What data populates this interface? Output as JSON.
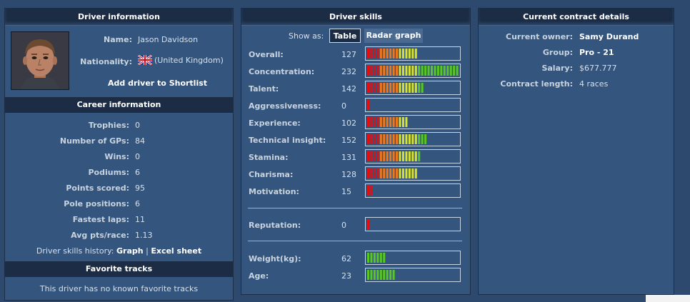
{
  "driver_info": {
    "title": "Driver information",
    "name_label": "Name:",
    "name": "Jason Davidson",
    "nationality_label": "Nationality:",
    "nationality": "(United Kingdom)",
    "flag_icon": "uk-flag-icon",
    "shortlist_link": "Add driver to Shortlist"
  },
  "career": {
    "title": "Career information",
    "rows": [
      {
        "label": "Trophies:",
        "value": "0"
      },
      {
        "label": "Number of GPs:",
        "value": "84"
      },
      {
        "label": "Wins:",
        "value": "0"
      },
      {
        "label": "Podiums:",
        "value": "6"
      },
      {
        "label": "Points scored:",
        "value": "95"
      },
      {
        "label": "Pole positions:",
        "value": "6"
      },
      {
        "label": "Fastest laps:",
        "value": "11"
      },
      {
        "label": "Avg pts/race:",
        "value": "1.13"
      }
    ],
    "history_label": "Driver skills history:",
    "history_graph": "Graph",
    "history_sep": "|",
    "history_excel": "Excel sheet"
  },
  "favorites": {
    "title": "Favorite tracks",
    "text": "This driver has no known favorite tracks"
  },
  "skills": {
    "title": "Driver skills",
    "show_as_label": "Show as:",
    "table_button": "Table",
    "radar_button": "Radar graph",
    "max_segments": 29,
    "rows": [
      {
        "label": "Overall:",
        "value": "127",
        "segments": 16
      },
      {
        "label": "Concentration:",
        "value": "232",
        "segments": 29
      },
      {
        "label": "Talent:",
        "value": "142",
        "segments": 18
      },
      {
        "label": "Aggressiveness:",
        "value": "0",
        "segments": 1
      },
      {
        "label": "Experience:",
        "value": "102",
        "segments": 13
      },
      {
        "label": "Technical insight:",
        "value": "152",
        "segments": 19
      },
      {
        "label": "Stamina:",
        "value": "131",
        "segments": 17
      },
      {
        "label": "Charisma:",
        "value": "128",
        "segments": 16
      },
      {
        "label": "Motivation:",
        "value": "15",
        "segments": 2
      }
    ],
    "reputation": {
      "label": "Reputation:",
      "value": "0",
      "segments": 1
    },
    "physical": [
      {
        "label": "Weight(kg):",
        "value": "62",
        "segments": 6
      },
      {
        "label": "Age:",
        "value": "23",
        "segments": 9
      }
    ],
    "colors": {
      "red": "#e01010",
      "orange": "#f07818",
      "yellow": "#d8e030",
      "green": "#58c820"
    }
  },
  "contract": {
    "title": "Current contract details",
    "rows": [
      {
        "label": "Current owner:",
        "value": "Samy Durand",
        "bold": true
      },
      {
        "label": "Group:",
        "value": "Pro - 21",
        "bold": true
      },
      {
        "label": "Salary:",
        "value": "$677.777",
        "bold": false
      },
      {
        "label": "Contract length:",
        "value": "4 races",
        "bold": false
      }
    ]
  }
}
